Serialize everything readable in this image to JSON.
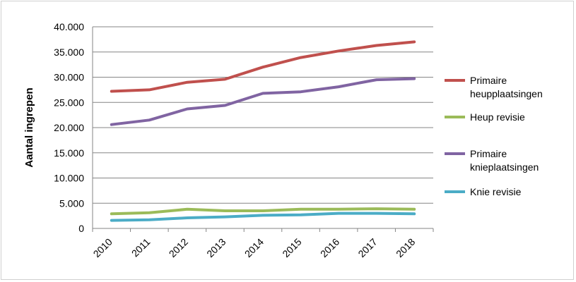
{
  "chart_data": {
    "type": "line",
    "title": "",
    "xlabel": "",
    "ylabel": "Aantal ingrepen",
    "ylim": [
      0,
      40000
    ],
    "yticks": [
      "0",
      "5.000",
      "10.000",
      "15.000",
      "20.000",
      "25.000",
      "30.000",
      "35.000",
      "40.000"
    ],
    "x": [
      "2010",
      "2011",
      "2012",
      "2013",
      "2014",
      "2015",
      "2016",
      "2017",
      "2018"
    ],
    "grid": true,
    "legend": "right",
    "series": [
      {
        "name": "Primaire heupplaatsingen",
        "legend_lines": [
          "Primaire",
          "heupplaatsingen"
        ],
        "color": "#c0504d",
        "values": [
          27200,
          27500,
          29000,
          29600,
          32000,
          33900,
          35200,
          36300,
          37000
        ]
      },
      {
        "name": "Heup revisie",
        "legend_lines": [
          "Heup revisie"
        ],
        "color": "#9bbb59",
        "values": [
          2900,
          3100,
          3800,
          3500,
          3500,
          3800,
          3800,
          3900,
          3800
        ]
      },
      {
        "name": "Primaire knieplaatsingen",
        "legend_lines": [
          "Primaire",
          "knieplaatsingen"
        ],
        "color": "#8064a2",
        "values": [
          20600,
          21500,
          23700,
          24400,
          26800,
          27100,
          28100,
          29500,
          29700
        ]
      },
      {
        "name": "Knie revisie",
        "legend_lines": [
          "Knie revisie"
        ],
        "color": "#4bacc6",
        "values": [
          1600,
          1700,
          2100,
          2300,
          2600,
          2700,
          3000,
          3000,
          2900
        ]
      }
    ]
  }
}
